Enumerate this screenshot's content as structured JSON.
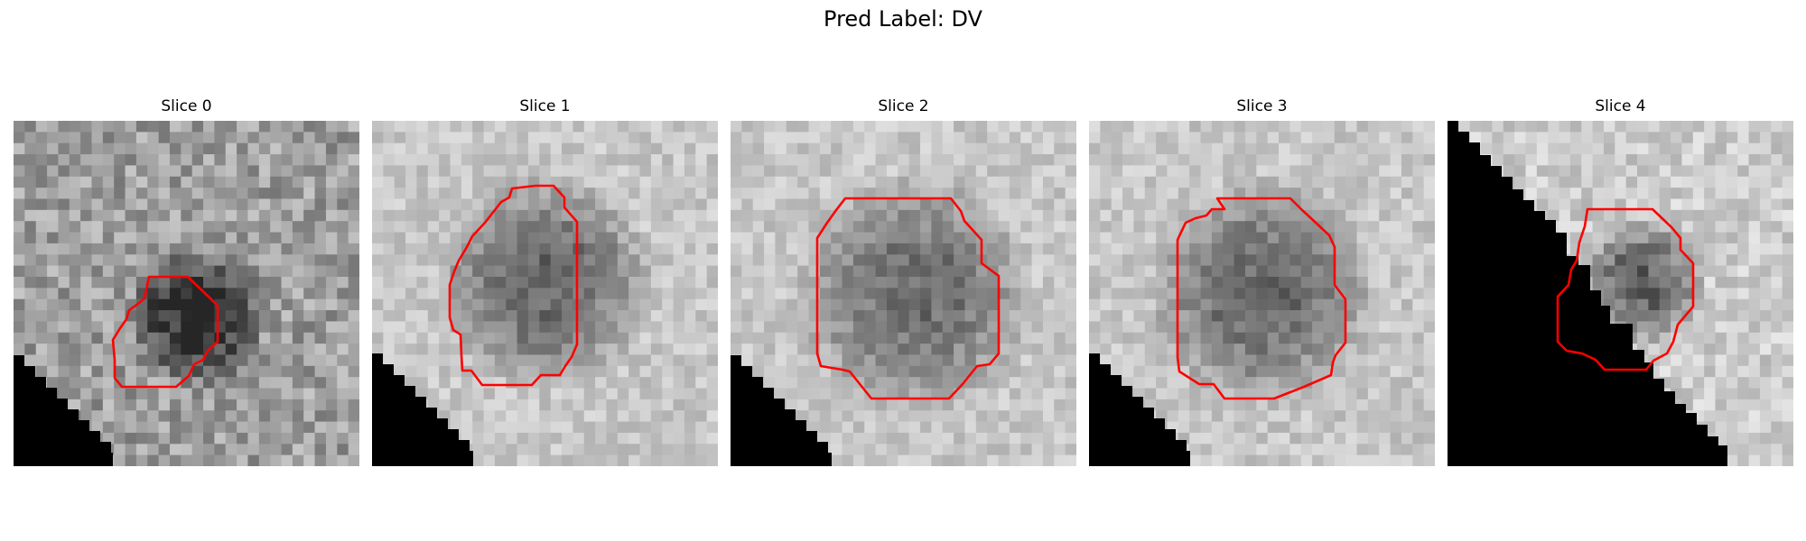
{
  "figure": {
    "suptitle": "Pred Label: DV"
  },
  "panels": [
    {
      "title": "Slice 0"
    },
    {
      "title": "Slice 1"
    },
    {
      "title": "Slice 2"
    },
    {
      "title": "Slice 3"
    },
    {
      "title": "Slice 4"
    }
  ],
  "colors": {
    "contour": "#ff0000",
    "mask": "#000000"
  }
}
